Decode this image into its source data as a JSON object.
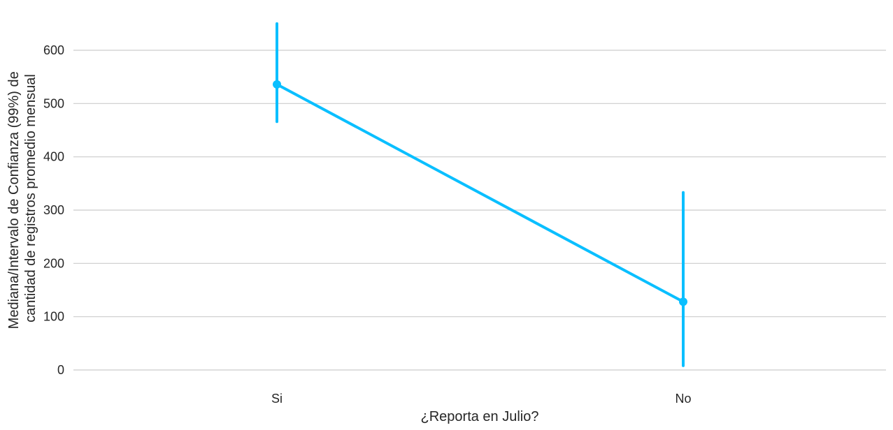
{
  "chart_data": {
    "type": "line",
    "title": "",
    "xlabel": "¿Reporta en Julio?",
    "ylabel": [
      "Mediana/Intervalo de Confianza (99%) de",
      "cantidad de registros promedio mensual"
    ],
    "categories": [
      "Si",
      "No"
    ],
    "series": [
      {
        "values": [
          536,
          128
        ],
        "ci_low": [
          466,
          8
        ],
        "ci_high": [
          650,
          333
        ]
      }
    ],
    "ylim": [
      0,
      650
    ],
    "yticks": [
      0,
      100,
      200,
      300,
      400,
      500,
      600
    ],
    "grid": true,
    "legend": "none",
    "colors": {
      "series": "#0abfff",
      "grid": "#cccccc",
      "text": "#262626"
    }
  }
}
